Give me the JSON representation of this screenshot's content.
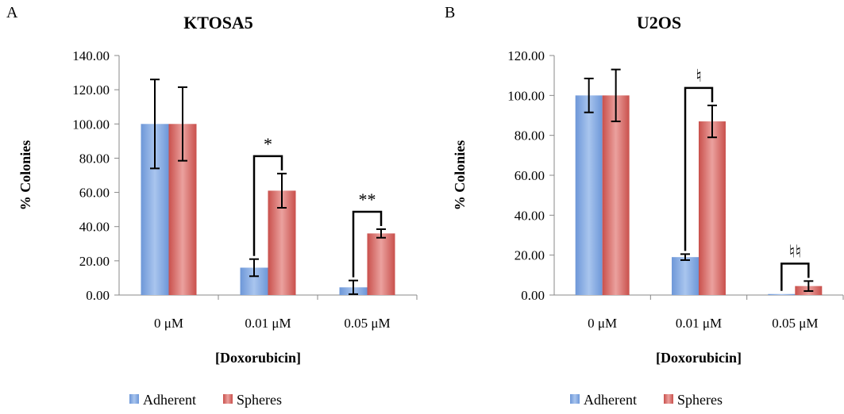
{
  "chart_data": [
    {
      "type": "bar",
      "panel": "A",
      "title": "KTOSA5",
      "xlabel": "[Doxorubicin]",
      "ylabel": "% Colonies",
      "categories": [
        "0 μM",
        "0.01 μM",
        "0.05 μM"
      ],
      "ylim": [
        0,
        140
      ],
      "yticks": [
        "0.00",
        "20.00",
        "40.00",
        "60.00",
        "80.00",
        "100.00",
        "120.00",
        "140.00"
      ],
      "series": [
        {
          "name": "Adherent",
          "color": "#7ea6e0",
          "values": [
            100,
            16,
            4.5
          ],
          "errors": [
            26,
            5,
            4
          ]
        },
        {
          "name": "Spheres",
          "color": "#d9736f",
          "values": [
            100,
            61,
            36
          ],
          "errors": [
            21.5,
            10,
            2.5
          ]
        }
      ],
      "significance": [
        "",
        "*",
        "**"
      ],
      "legend_position": "bottom"
    },
    {
      "type": "bar",
      "panel": "B",
      "title": "U2OS",
      "xlabel": "[Doxorubicin]",
      "ylabel": "% Colonies",
      "categories": [
        "0 μM",
        "0.01 μM",
        "0.05 μM"
      ],
      "ylim": [
        0,
        120
      ],
      "yticks": [
        "0.00",
        "20.00",
        "40.00",
        "60.00",
        "80.00",
        "100.00",
        "120.00"
      ],
      "series": [
        {
          "name": "Adherent",
          "color": "#7ea6e0",
          "values": [
            100,
            19,
            0.5
          ],
          "errors": [
            8.5,
            1.5,
            0
          ]
        },
        {
          "name": "Spheres",
          "color": "#d9736f",
          "values": [
            100,
            87,
            4.5
          ],
          "errors": [
            13,
            8,
            2.5
          ]
        }
      ],
      "significance": [
        "",
        "♮",
        "♮♮"
      ],
      "legend_position": "bottom"
    }
  ]
}
